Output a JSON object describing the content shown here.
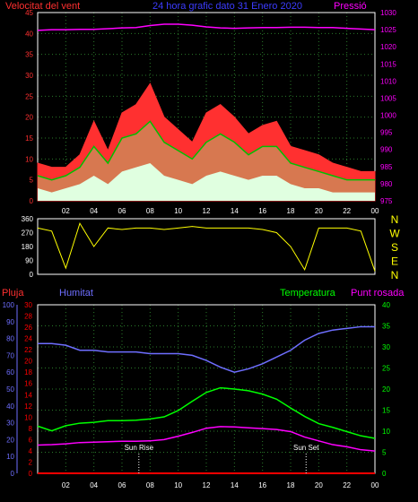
{
  "header": {
    "wind_label": "Velocitat del vent",
    "period_label": "24 hora grafic dato 31 Enero 2020",
    "pressure_label": "Pressió"
  },
  "colors": {
    "wind": "#ff3030",
    "wind_avg": "#00c000",
    "wind_min": "#e0ffe0",
    "pressure": "#ff00ff",
    "direction": "#ffff00",
    "humidity": "#6e6eff",
    "temperature": "#00ff00",
    "dewpoint": "#ff00ff",
    "rain": "#ff0000",
    "grid": "#00ff00"
  },
  "chart_data": [
    {
      "type": "area",
      "name": "wind-and-pressure",
      "x_tick_labels": [
        "02",
        "04",
        "06",
        "08",
        "10",
        "12",
        "14",
        "16",
        "18",
        "20",
        "22",
        "00"
      ],
      "y_left_ticks": [
        "0",
        "5",
        "10",
        "15",
        "20",
        "25",
        "30",
        "35",
        "40",
        "45"
      ],
      "y_left_range": [
        0,
        45
      ],
      "y_right_ticks": [
        "975",
        "980",
        "985",
        "990",
        "995",
        "1000",
        "1005",
        "1010",
        "1015",
        "1020",
        "1025",
        "1030"
      ],
      "y_right_range": [
        975,
        1030
      ],
      "x": [
        0,
        1,
        2,
        3,
        4,
        5,
        6,
        7,
        8,
        9,
        10,
        11,
        12,
        13,
        14,
        15,
        16,
        17,
        18,
        19,
        20,
        21,
        22,
        23,
        24
      ],
      "series": [
        {
          "key": "gust",
          "values": [
            9,
            8,
            8,
            11,
            19,
            12,
            21,
            23,
            28,
            20,
            17,
            14,
            21,
            23,
            20,
            16,
            18,
            19,
            13,
            12,
            11,
            9,
            8,
            7,
            7
          ]
        },
        {
          "key": "avg",
          "values": [
            6,
            5,
            6,
            8,
            13,
            9,
            15,
            16,
            19,
            14,
            12,
            10,
            14,
            16,
            14,
            11,
            13,
            13,
            9,
            8,
            7,
            6,
            5,
            5,
            5
          ]
        },
        {
          "key": "min",
          "values": [
            3,
            2,
            3,
            4,
            6,
            4,
            7,
            8,
            9,
            6,
            5,
            4,
            6,
            7,
            6,
            5,
            6,
            6,
            4,
            3,
            3,
            2,
            2,
            2,
            2
          ]
        },
        {
          "key": "pressure",
          "values": [
            1024.8,
            1025.0,
            1025.0,
            1025.1,
            1025.1,
            1025.3,
            1025.5,
            1025.6,
            1026.2,
            1026.6,
            1026.6,
            1026.3,
            1025.8,
            1025.5,
            1025.4,
            1025.5,
            1025.6,
            1025.6,
            1025.7,
            1025.7,
            1025.6,
            1025.6,
            1025.4,
            1025.2,
            1025.0
          ]
        }
      ]
    },
    {
      "type": "line",
      "name": "wind-direction",
      "y_left_ticks": [
        "0",
        "90",
        "180",
        "270",
        "360"
      ],
      "y_left_range": [
        0,
        360
      ],
      "y_right_labels": [
        "N",
        "W",
        "S",
        "E",
        "N"
      ],
      "x_tick_labels": [
        "02",
        "04",
        "06",
        "08",
        "10",
        "12",
        "14",
        "16",
        "18",
        "20",
        "22",
        "00"
      ],
      "x": [
        0,
        1,
        2,
        3,
        4,
        5,
        6,
        7,
        8,
        9,
        10,
        11,
        12,
        13,
        14,
        15,
        16,
        17,
        18,
        19,
        20,
        21,
        22,
        23,
        24
      ],
      "values": [
        300,
        280,
        40,
        330,
        180,
        300,
        290,
        300,
        300,
        290,
        300,
        310,
        300,
        300,
        300,
        300,
        290,
        270,
        180,
        30,
        300,
        300,
        300,
        280,
        20
      ]
    },
    {
      "type": "line",
      "name": "climate",
      "labels": {
        "rain": "Pluja",
        "humidity": "Humitat",
        "temperature": "Temperatura",
        "dewpoint": "Punt rosada"
      },
      "axis_pluja_ticks": [
        "0",
        "2",
        "4",
        "6",
        "8",
        "10",
        "12",
        "14",
        "16",
        "18",
        "20",
        "22",
        "24",
        "26",
        "28",
        "30"
      ],
      "axis_hum_ticks": [
        "0",
        "10",
        "20",
        "30",
        "40",
        "50",
        "60",
        "70",
        "80",
        "90",
        "100"
      ],
      "axis_temp_ticks": [
        "0",
        "5",
        "10",
        "15",
        "20",
        "25",
        "30",
        "35",
        "40"
      ],
      "temp_range": [
        0,
        40
      ],
      "x_tick_labels": [
        "02",
        "04",
        "06",
        "08",
        "10",
        "12",
        "14",
        "16",
        "18",
        "20",
        "22",
        "00"
      ],
      "annotations": [
        {
          "label": "Sun Rise",
          "x": 7.2
        },
        {
          "label": "Sun Set",
          "x": 19.1
        }
      ],
      "x": [
        0,
        1,
        2,
        3,
        4,
        5,
        6,
        7,
        8,
        9,
        10,
        11,
        12,
        13,
        14,
        15,
        16,
        17,
        18,
        19,
        20,
        21,
        22,
        23,
        24
      ],
      "series": [
        {
          "key": "humidity",
          "values": [
            77,
            77,
            76,
            73,
            73,
            72,
            72,
            72,
            71,
            71,
            71,
            70,
            67,
            63,
            60,
            62,
            65,
            69,
            73,
            79,
            83,
            85,
            86,
            87,
            87
          ]
        },
        {
          "key": "temperature",
          "values": [
            11.2,
            10.1,
            11.3,
            11.9,
            12.1,
            12.5,
            12.5,
            12.6,
            12.9,
            13.4,
            14.9,
            17.1,
            19.2,
            20.3,
            20.0,
            19.6,
            18.8,
            17.6,
            15.5,
            13.5,
            11.8,
            10.9,
            9.9,
            8.9,
            8.3
          ]
        },
        {
          "key": "dewpoint",
          "values": [
            6.7,
            6.8,
            7.0,
            7.3,
            7.4,
            7.5,
            7.6,
            7.6,
            7.7,
            8.0,
            8.8,
            9.7,
            10.7,
            11.1,
            11.0,
            10.8,
            10.6,
            10.4,
            9.9,
            8.6,
            7.7,
            6.8,
            6.3,
            5.6,
            5.3
          ]
        },
        {
          "key": "rain",
          "values": [
            0,
            0,
            0,
            0,
            0,
            0,
            0,
            0,
            0,
            0,
            0,
            0,
            0,
            0,
            0,
            0,
            0,
            0,
            0,
            0,
            0,
            0,
            0,
            0,
            0
          ]
        }
      ]
    }
  ]
}
